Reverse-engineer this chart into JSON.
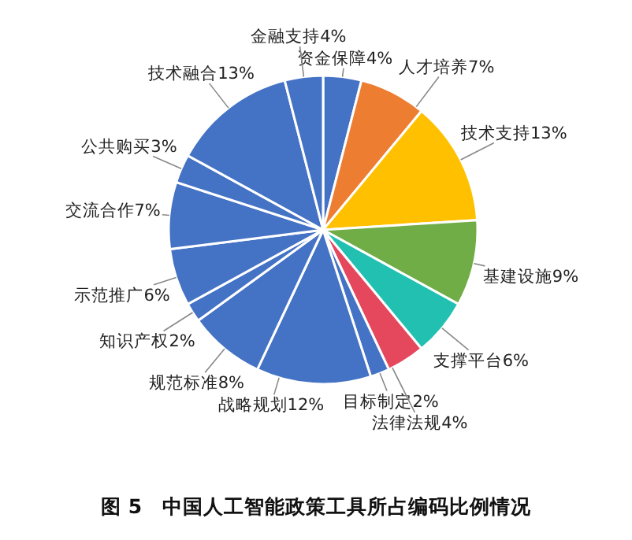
{
  "chart_data": {
    "type": "pie",
    "title": "图 5　中国人工智能政策工具所占编码比例情况",
    "categories": [
      "资金保障",
      "人才培养",
      "技术支持",
      "基建设施",
      "支撑平台",
      "法律法规",
      "目标制定",
      "战略规划",
      "规范标准",
      "知识产权",
      "示范推广",
      "交流合作",
      "公共购买",
      "技术融合",
      "金融支持"
    ],
    "values": [
      4,
      7,
      13,
      9,
      6,
      4,
      2,
      12,
      8,
      2,
      6,
      7,
      3,
      13,
      4
    ],
    "value_labels": [
      "4%",
      "7%",
      "13%",
      "9%",
      "6%",
      "4%",
      "2%",
      "12%",
      "8%",
      "2%",
      "6%",
      "7%",
      "3%",
      "13%",
      "4%"
    ],
    "colors": [
      "#4472c4",
      "#ed7d31",
      "#ffc000",
      "#70ad47",
      "#21c0b0",
      "#e5475c",
      "#4472c4",
      "#4472c4",
      "#4472c4",
      "#4472c4",
      "#4472c4",
      "#4472c4",
      "#4472c4",
      "#4472c4",
      "#4472c4"
    ],
    "legend": false
  }
}
